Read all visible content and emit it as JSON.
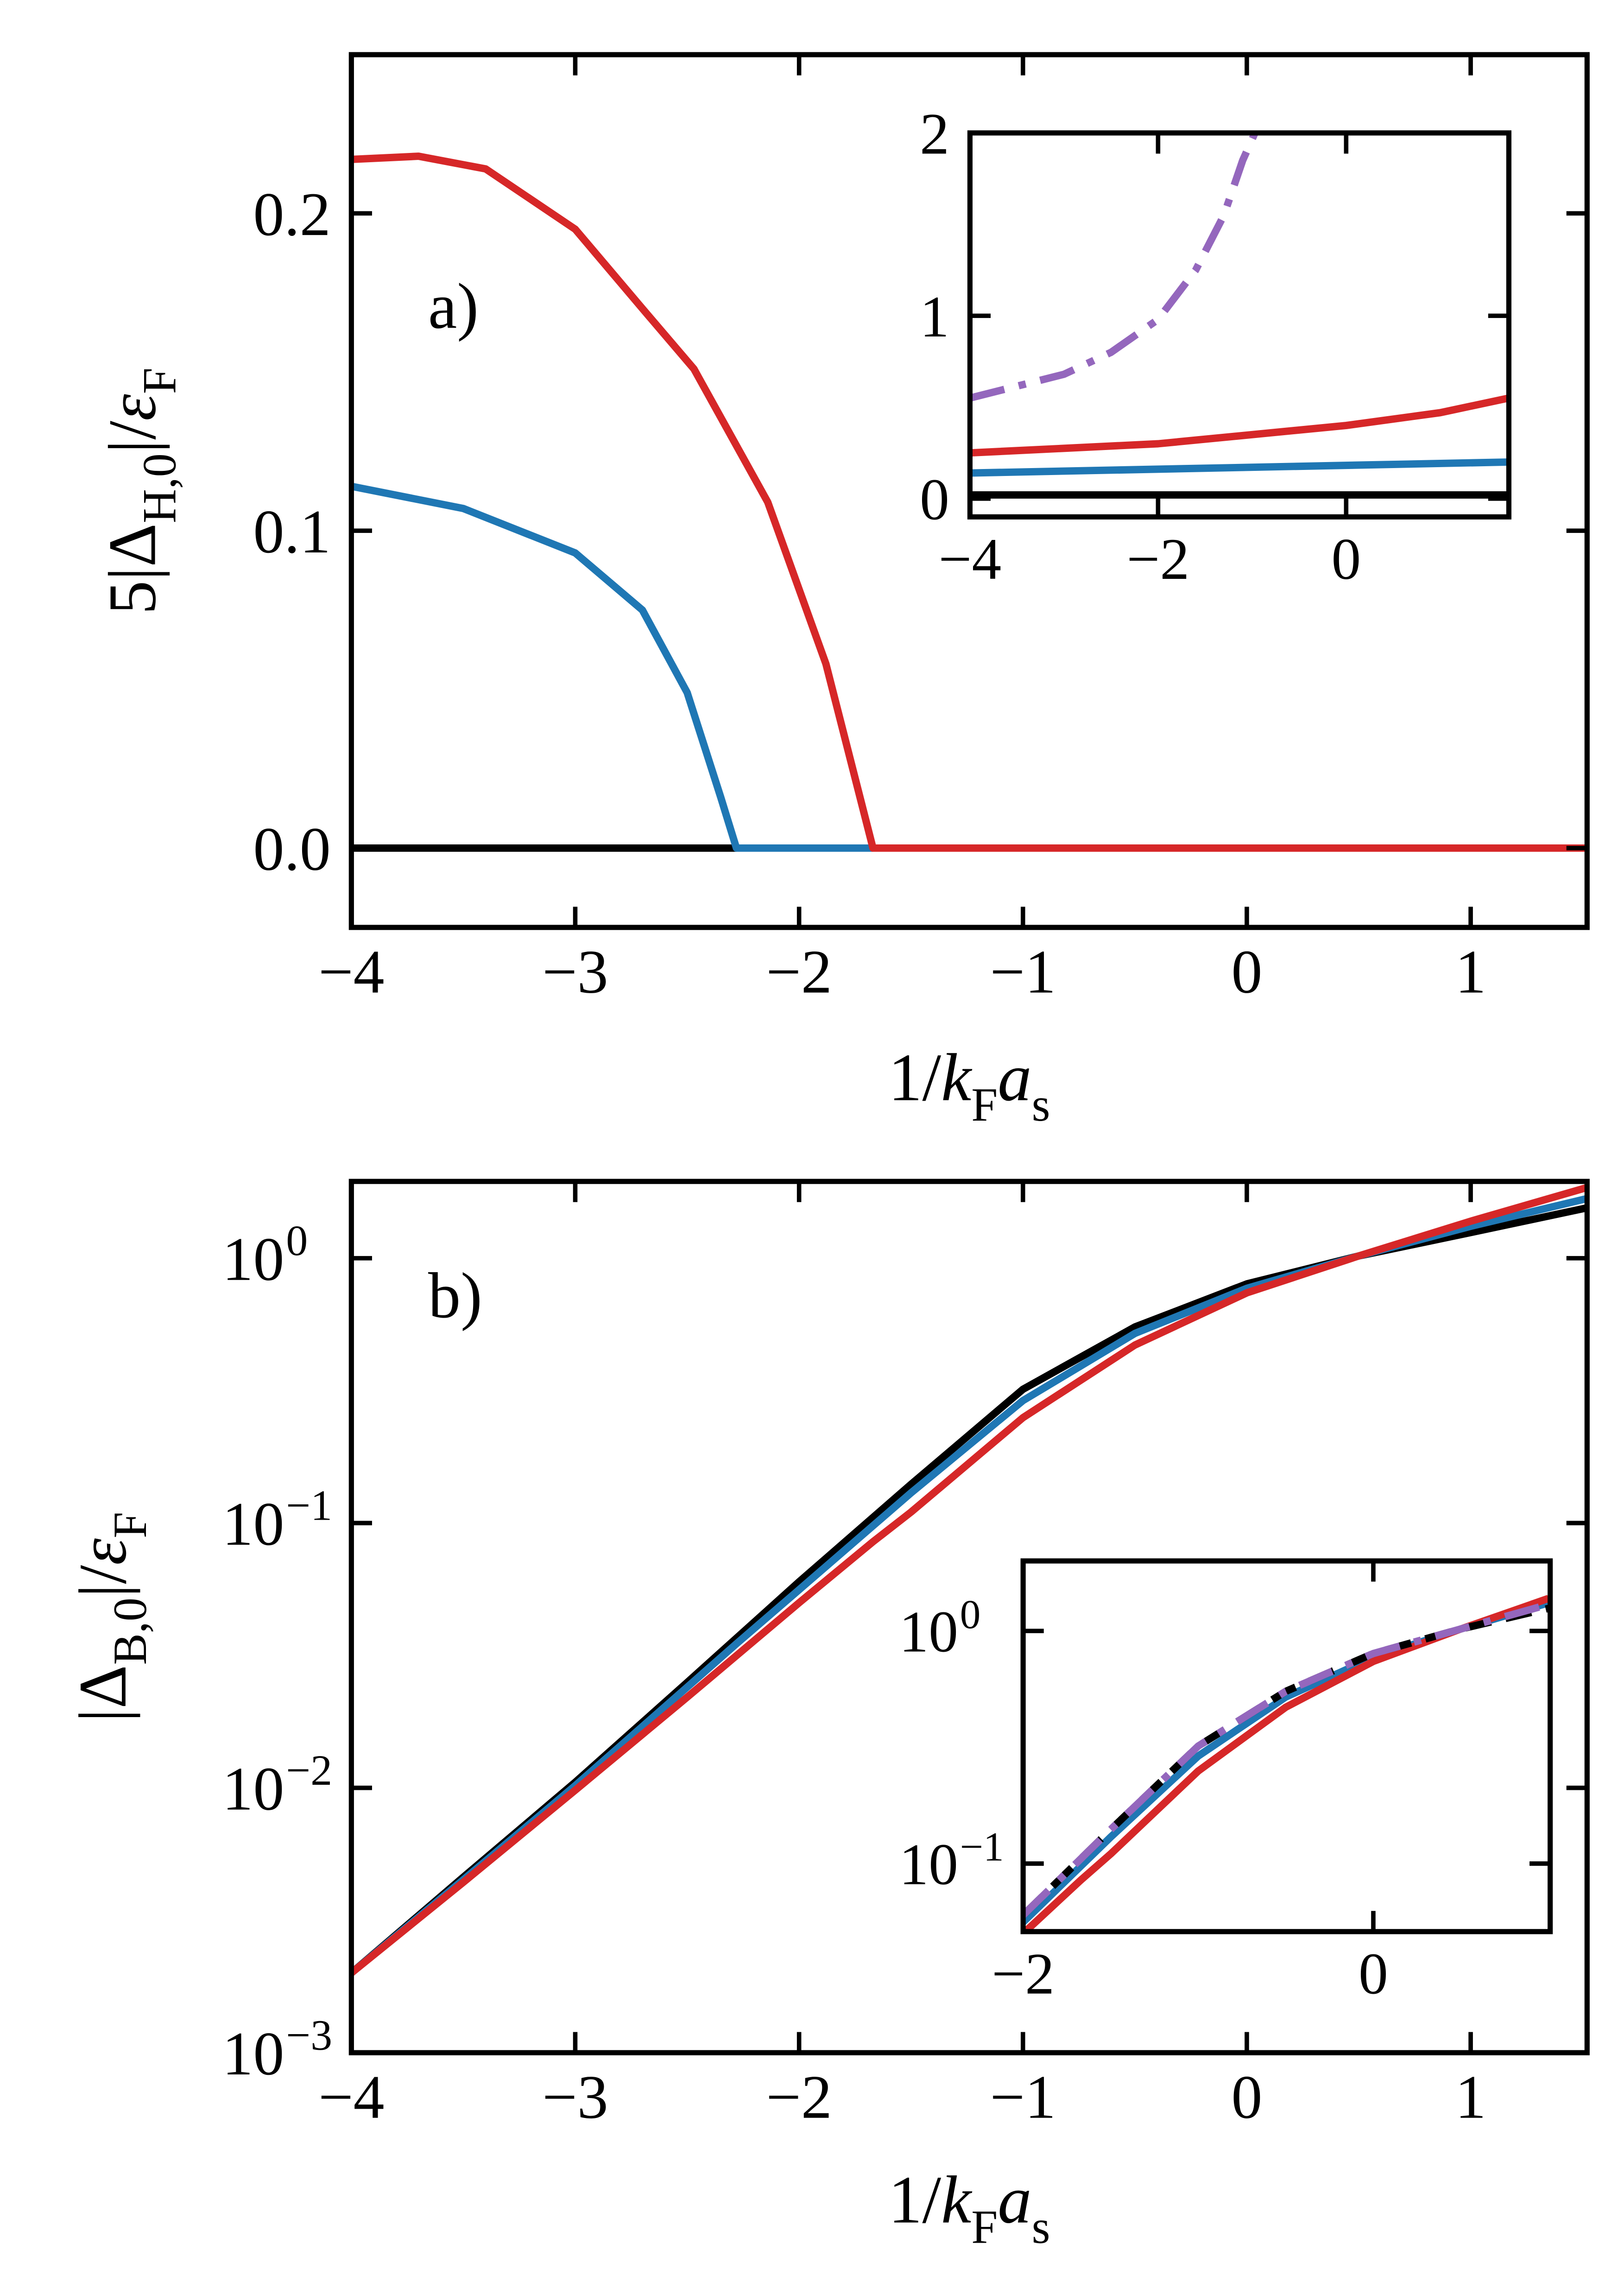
{
  "chart_data": [
    {
      "type": "line",
      "annotation": "a)",
      "xlabel": [
        {
          "text": "1/"
        },
        {
          "text": "k",
          "italic": true
        },
        {
          "text": "F",
          "sub": true
        },
        {
          "text": "a",
          "italic": true
        },
        {
          "text": "s",
          "sub": true
        }
      ],
      "ylabel": [
        {
          "text": "5|Δ"
        },
        {
          "text": "H,0",
          "sub": true
        },
        {
          "text": "|/"
        },
        {
          "text": "ε",
          "italic": true
        },
        {
          "text": "F",
          "sub": true
        }
      ],
      "xlim": [
        -4,
        1.52
      ],
      "ylim": [
        -0.025,
        0.25
      ],
      "xticks": [
        {
          "value": -4,
          "label": "−4"
        },
        {
          "value": -3,
          "label": "−3"
        },
        {
          "value": -2,
          "label": "−2"
        },
        {
          "value": -1,
          "label": "−1"
        },
        0,
        1
      ],
      "yticks": [
        {
          "value": 0,
          "label": "0.0"
        },
        0.1,
        0.2
      ],
      "series": [
        {
          "color": "#000000",
          "linestyle": "solid",
          "x": [
            -4,
            -2.28
          ],
          "values": [
            0,
            0
          ]
        },
        {
          "color": "#1f77b4",
          "linestyle": "solid",
          "x": [
            -4,
            -3.5,
            -3,
            -2.7,
            -2.5,
            -2.35,
            -2.28,
            -1.67
          ],
          "values": [
            0.114,
            0.107,
            0.093,
            0.075,
            0.049,
            0.016,
            0,
            0
          ]
        },
        {
          "color": "#d62728",
          "linestyle": "solid",
          "x": [
            -4,
            -3.7,
            -3.4,
            -3,
            -2.7,
            -2.47,
            -2.14,
            -1.88,
            -1.67,
            1.52
          ],
          "values": [
            0.217,
            0.218,
            0.214,
            0.195,
            0.17,
            0.151,
            0.109,
            0.058,
            0,
            0
          ]
        }
      ]
    },
    {
      "type": "line",
      "xlim": [
        -4,
        1.73
      ],
      "ylim": [
        -0.1,
        2
      ],
      "xticks": [
        {
          "value": -4,
          "label": "−4"
        },
        {
          "value": -2,
          "label": "−2"
        },
        0
      ],
      "yticks": [
        0,
        1,
        2
      ],
      "series": [
        {
          "color": "#000000",
          "linestyle": "solid",
          "x": [
            -4,
            1.73
          ],
          "values": [
            0.02,
            0.02
          ]
        },
        {
          "color": "#1f77b4",
          "linestyle": "solid",
          "x": [
            -4,
            1.73
          ],
          "values": [
            0.14,
            0.2
          ]
        },
        {
          "color": "#d62728",
          "linestyle": "solid",
          "x": [
            -4,
            -2,
            0,
            1,
            1.73
          ],
          "values": [
            0.25,
            0.3,
            0.4,
            0.47,
            0.55
          ]
        },
        {
          "color": "#9467bd",
          "linestyle": "dashdot",
          "x": [
            -4,
            -3,
            -2.5,
            -2,
            -1.6,
            -1.3,
            -1.1,
            -0.97
          ],
          "values": [
            0.55,
            0.68,
            0.8,
            0.98,
            1.25,
            1.55,
            1.85,
            2.0
          ]
        }
      ]
    },
    {
      "type": "line",
      "annotation": "b)",
      "ylog": true,
      "xlabel": [
        {
          "text": "1/"
        },
        {
          "text": "k",
          "italic": true
        },
        {
          "text": "F",
          "sub": true
        },
        {
          "text": "a",
          "italic": true
        },
        {
          "text": "s",
          "sub": true
        }
      ],
      "ylabel": [
        {
          "text": "|Δ"
        },
        {
          "text": "B,0",
          "sub": true
        },
        {
          "text": "|/"
        },
        {
          "text": "ε",
          "italic": true
        },
        {
          "text": "F",
          "sub": true
        }
      ],
      "xlim": [
        -4,
        1.52
      ],
      "ylim": [
        0.001,
        1.95
      ],
      "xticks": [
        {
          "value": -4,
          "label": "−4"
        },
        {
          "value": -3,
          "label": "−3"
        },
        {
          "value": -2,
          "label": "−2"
        },
        {
          "value": -1,
          "label": "−1"
        },
        0,
        1
      ],
      "yticks": [
        {
          "value": 0.001,
          "label": "10",
          "exponent": "−3"
        },
        {
          "value": 0.01,
          "label": "10",
          "exponent": "−2"
        },
        {
          "value": 0.1,
          "label": "10",
          "exponent": "−1"
        },
        {
          "value": 1,
          "label": "10",
          "exponent": "0"
        }
      ],
      "series": [
        {
          "color": "#000000",
          "linestyle": "solid",
          "x": [
            -4,
            -3.5,
            -3,
            -2.5,
            -2,
            -1.5,
            -1,
            -0.5,
            0,
            0.5,
            1,
            1.52
          ],
          "values": [
            0.002,
            0.0046,
            0.0105,
            0.025,
            0.06,
            0.14,
            0.32,
            0.55,
            0.8,
            1.02,
            1.25,
            1.55
          ]
        },
        {
          "color": "#1f77b4",
          "linestyle": "solid",
          "x": [
            -4,
            -3.5,
            -3,
            -2.5,
            -2.28,
            -2,
            -1.5,
            -1,
            -0.5,
            0,
            0.5,
            1,
            1.52
          ],
          "values": [
            0.002,
            0.0045,
            0.0102,
            0.024,
            0.035,
            0.056,
            0.13,
            0.29,
            0.52,
            0.77,
            1.02,
            1.32,
            1.68
          ]
        },
        {
          "color": "#d62728",
          "linestyle": "solid",
          "x": [
            -4,
            -3.5,
            -3,
            -2.5,
            -2,
            -1.67,
            -1.5,
            -1,
            -0.5,
            0,
            0.5,
            1,
            1.52
          ],
          "values": [
            0.002,
            0.0044,
            0.0098,
            0.022,
            0.05,
            0.085,
            0.11,
            0.25,
            0.47,
            0.74,
            1.02,
            1.38,
            1.85
          ]
        }
      ]
    },
    {
      "type": "line",
      "ylog": true,
      "xlim": [
        -2,
        1.01
      ],
      "ylim": [
        0.051,
        2.0
      ],
      "xticks": [
        {
          "value": -2,
          "label": "−2"
        },
        0
      ],
      "yticks": [
        {
          "value": 0.1,
          "label": "10",
          "exponent": "−1"
        },
        {
          "value": 1,
          "label": "10",
          "exponent": "0"
        }
      ],
      "series": [
        {
          "color": "#1f77b4",
          "linestyle": "solid",
          "x": [
            -2,
            -1.5,
            -1,
            -0.5,
            0,
            0.5,
            1
          ],
          "values": [
            0.056,
            0.13,
            0.29,
            0.52,
            0.77,
            1.02,
            1.32
          ]
        },
        {
          "color": "#d62728",
          "linestyle": "solid",
          "x": [
            -2,
            -1.67,
            -1.5,
            -1,
            -0.5,
            0,
            0.5,
            1
          ],
          "values": [
            0.05,
            0.085,
            0.11,
            0.25,
            0.47,
            0.74,
            1.02,
            1.38
          ]
        },
        {
          "color": "#000000",
          "linestyle": "dashed",
          "x": [
            -2,
            -1.5,
            -1,
            -0.5,
            0,
            0.5,
            1
          ],
          "values": [
            0.06,
            0.14,
            0.32,
            0.55,
            0.8,
            1.02,
            1.25
          ]
        },
        {
          "color": "#9467bd",
          "linestyle": "dashdot",
          "x": [
            -2,
            -1.5,
            -1,
            -0.5,
            0,
            0.5,
            1
          ],
          "values": [
            0.06,
            0.14,
            0.32,
            0.55,
            0.8,
            1.02,
            1.3
          ]
        }
      ]
    }
  ]
}
